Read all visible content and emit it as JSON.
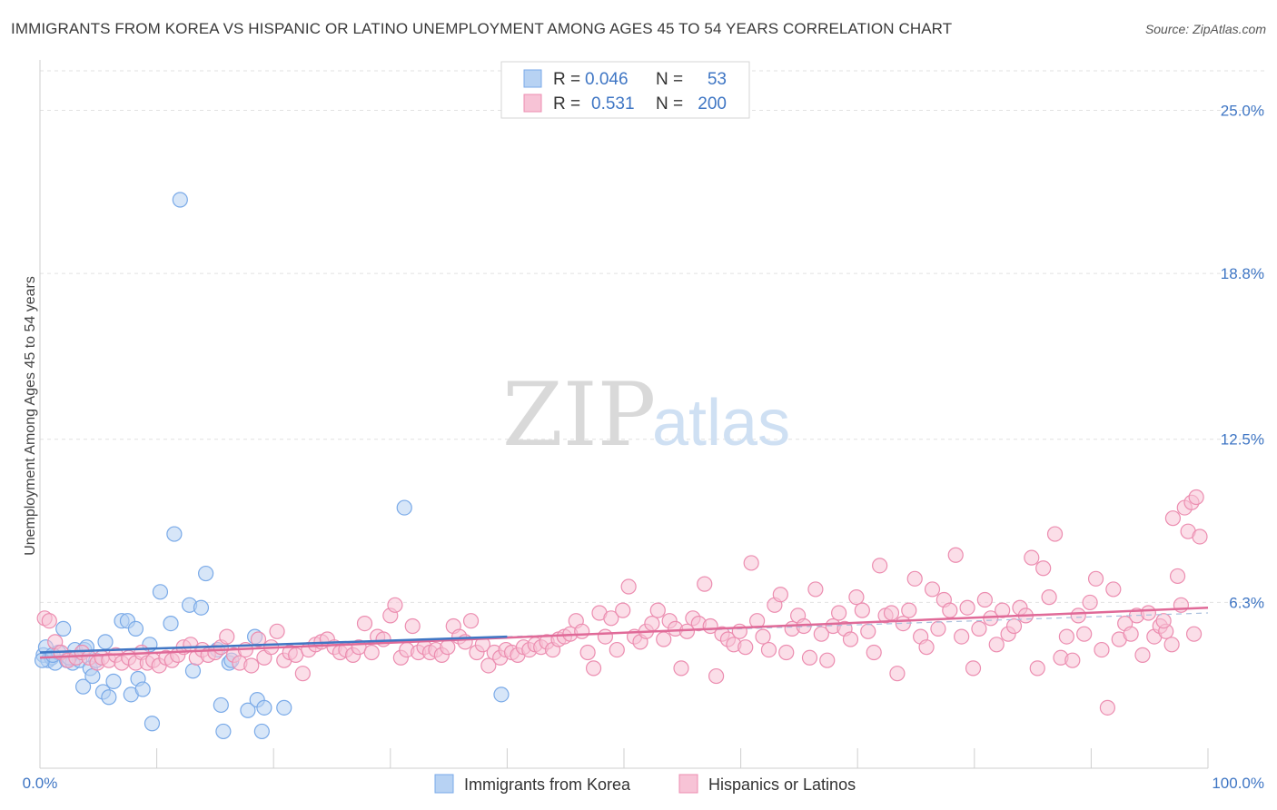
{
  "title": "IMMIGRANTS FROM KOREA VS HISPANIC OR LATINO UNEMPLOYMENT AMONG AGES 45 TO 54 YEARS CORRELATION CHART",
  "source": "Source: ZipAtlas.com",
  "watermark": {
    "zip": "ZIP",
    "atlas": "atlas"
  },
  "legend_box": {
    "rows": [
      {
        "r_label": "R =",
        "r_value": "0.046",
        "n_label": "N =",
        "n_value": "53"
      },
      {
        "r_label": "R =",
        "r_value": "0.531",
        "n_label": "N =",
        "n_value": "200"
      }
    ]
  },
  "chart_data": {
    "type": "scatter",
    "title": "IMMIGRANTS FROM KOREA VS HISPANIC OR LATINO UNEMPLOYMENT AMONG AGES 45 TO 54 YEARS CORRELATION CHART",
    "xlabel": "",
    "ylabel": "Unemployment Among Ages 45 to 54 years",
    "xlim": [
      0,
      100
    ],
    "ylim": [
      0,
      26.5
    ],
    "x_tick_labels": [
      "0.0%",
      "100.0%"
    ],
    "y_ticks": [
      6.3,
      12.5,
      18.8,
      25.0
    ],
    "y_tick_labels": [
      "6.3%",
      "12.5%",
      "18.8%",
      "25.0%"
    ],
    "grid": true,
    "legend_position": "bottom",
    "series": [
      {
        "name": "Immigrants from Korea",
        "color": "#7aaae8",
        "fill": "#b7d2f3",
        "R": 0.046,
        "N": 53,
        "trend": {
          "x": [
            0,
            40
          ],
          "y": [
            4.4,
            5.0
          ]
        },
        "points": [
          [
            0.3,
            4.3
          ],
          [
            0.5,
            4.6
          ],
          [
            0.7,
            4.1
          ],
          [
            1.0,
            4.2
          ],
          [
            1.3,
            4.0
          ],
          [
            1.6,
            4.4
          ],
          [
            2.0,
            5.3
          ],
          [
            2.3,
            4.1
          ],
          [
            2.8,
            4.0
          ],
          [
            3.0,
            4.5
          ],
          [
            3.4,
            4.1
          ],
          [
            3.7,
            3.1
          ],
          [
            3.8,
            4.5
          ],
          [
            4.0,
            4.6
          ],
          [
            4.3,
            3.8
          ],
          [
            4.5,
            3.5
          ],
          [
            4.8,
            4.1
          ],
          [
            5.4,
            2.9
          ],
          [
            5.6,
            4.8
          ],
          [
            5.9,
            2.7
          ],
          [
            6.3,
            3.3
          ],
          [
            7.0,
            5.6
          ],
          [
            7.5,
            5.6
          ],
          [
            7.8,
            2.8
          ],
          [
            8.2,
            5.3
          ],
          [
            8.4,
            3.4
          ],
          [
            8.8,
            3.0
          ],
          [
            9.6,
            1.7
          ],
          [
            9.4,
            4.7
          ],
          [
            10.3,
            6.7
          ],
          [
            11.2,
            5.5
          ],
          [
            12.0,
            21.6
          ],
          [
            11.5,
            8.9
          ],
          [
            12.8,
            6.2
          ],
          [
            13.1,
            3.7
          ],
          [
            13.8,
            6.1
          ],
          [
            14.2,
            7.4
          ],
          [
            15.2,
            4.5
          ],
          [
            16.2,
            4.0
          ],
          [
            16.4,
            4.1
          ],
          [
            15.5,
            2.4
          ],
          [
            15.7,
            1.4
          ],
          [
            17.8,
            2.2
          ],
          [
            18.4,
            5.0
          ],
          [
            18.6,
            2.6
          ],
          [
            19.0,
            1.4
          ],
          [
            19.2,
            2.3
          ],
          [
            20.9,
            2.3
          ],
          [
            31.2,
            9.9
          ],
          [
            39.5,
            2.8
          ],
          [
            0.2,
            4.1
          ],
          [
            1.1,
            4.3
          ],
          [
            2.5,
            4.2
          ]
        ]
      },
      {
        "name": "Hispanics or Latinos",
        "color": "#ec8db0",
        "fill": "#f7c3d6",
        "R": 0.531,
        "N": 200,
        "trend": {
          "x": [
            0,
            100
          ],
          "y": [
            4.2,
            6.1
          ]
        },
        "points": [
          [
            0.4,
            5.7
          ],
          [
            0.8,
            5.6
          ],
          [
            1.3,
            4.8
          ],
          [
            1.8,
            4.4
          ],
          [
            2.4,
            4.1
          ],
          [
            3.1,
            4.2
          ],
          [
            3.6,
            4.4
          ],
          [
            4.2,
            4.2
          ],
          [
            4.9,
            4.0
          ],
          [
            5.3,
            4.2
          ],
          [
            5.9,
            4.1
          ],
          [
            6.5,
            4.3
          ],
          [
            7.0,
            4.0
          ],
          [
            7.6,
            4.2
          ],
          [
            8.2,
            4.0
          ],
          [
            8.7,
            4.4
          ],
          [
            9.2,
            4.0
          ],
          [
            9.7,
            4.1
          ],
          [
            10.2,
            3.9
          ],
          [
            10.8,
            4.2
          ],
          [
            11.3,
            4.1
          ],
          [
            11.8,
            4.3
          ],
          [
            12.3,
            4.6
          ],
          [
            12.9,
            4.7
          ],
          [
            13.4,
            4.2
          ],
          [
            13.9,
            4.5
          ],
          [
            14.4,
            4.3
          ],
          [
            15.0,
            4.4
          ],
          [
            15.5,
            4.6
          ],
          [
            16.0,
            5.0
          ],
          [
            16.6,
            4.3
          ],
          [
            17.1,
            4.0
          ],
          [
            17.6,
            4.5
          ],
          [
            18.1,
            3.9
          ],
          [
            18.7,
            4.9
          ],
          [
            19.2,
            4.2
          ],
          [
            19.8,
            4.6
          ],
          [
            20.3,
            5.2
          ],
          [
            20.9,
            4.1
          ],
          [
            21.4,
            4.4
          ],
          [
            21.9,
            4.3
          ],
          [
            22.5,
            3.6
          ],
          [
            23.0,
            4.5
          ],
          [
            23.6,
            4.7
          ],
          [
            24.1,
            4.8
          ],
          [
            24.6,
            4.9
          ],
          [
            25.2,
            4.6
          ],
          [
            25.7,
            4.4
          ],
          [
            26.2,
            4.5
          ],
          [
            26.8,
            4.3
          ],
          [
            27.3,
            4.6
          ],
          [
            27.8,
            5.5
          ],
          [
            28.4,
            4.4
          ],
          [
            28.9,
            5.0
          ],
          [
            29.4,
            4.9
          ],
          [
            30.0,
            5.8
          ],
          [
            30.4,
            6.2
          ],
          [
            30.9,
            4.2
          ],
          [
            31.4,
            4.5
          ],
          [
            31.9,
            5.4
          ],
          [
            32.4,
            4.4
          ],
          [
            32.9,
            4.6
          ],
          [
            33.4,
            4.4
          ],
          [
            33.9,
            4.5
          ],
          [
            34.4,
            4.3
          ],
          [
            34.9,
            4.6
          ],
          [
            35.4,
            5.4
          ],
          [
            35.9,
            5.0
          ],
          [
            36.4,
            4.8
          ],
          [
            36.9,
            5.6
          ],
          [
            37.4,
            4.4
          ],
          [
            37.9,
            4.7
          ],
          [
            38.4,
            3.9
          ],
          [
            38.9,
            4.4
          ],
          [
            39.4,
            4.2
          ],
          [
            39.9,
            4.5
          ],
          [
            40.4,
            4.4
          ],
          [
            40.9,
            4.3
          ],
          [
            41.4,
            4.6
          ],
          [
            41.9,
            4.5
          ],
          [
            42.4,
            4.7
          ],
          [
            42.9,
            4.6
          ],
          [
            43.4,
            4.8
          ],
          [
            43.9,
            4.5
          ],
          [
            44.4,
            4.9
          ],
          [
            44.9,
            5.0
          ],
          [
            45.4,
            5.1
          ],
          [
            45.9,
            5.6
          ],
          [
            46.4,
            5.2
          ],
          [
            46.9,
            4.4
          ],
          [
            47.4,
            3.8
          ],
          [
            47.9,
            5.9
          ],
          [
            48.4,
            5.0
          ],
          [
            48.9,
            5.7
          ],
          [
            49.4,
            4.5
          ],
          [
            49.9,
            6.0
          ],
          [
            50.4,
            6.9
          ],
          [
            50.9,
            5.0
          ],
          [
            51.4,
            4.8
          ],
          [
            51.9,
            5.2
          ],
          [
            52.4,
            5.5
          ],
          [
            52.9,
            6.0
          ],
          [
            53.4,
            4.9
          ],
          [
            53.9,
            5.6
          ],
          [
            54.4,
            5.3
          ],
          [
            54.9,
            3.8
          ],
          [
            55.4,
            5.2
          ],
          [
            55.9,
            5.7
          ],
          [
            56.4,
            5.5
          ],
          [
            56.9,
            7.0
          ],
          [
            57.4,
            5.4
          ],
          [
            57.9,
            3.5
          ],
          [
            58.4,
            5.1
          ],
          [
            58.9,
            4.9
          ],
          [
            59.4,
            4.7
          ],
          [
            59.9,
            5.2
          ],
          [
            60.4,
            4.6
          ],
          [
            60.9,
            7.8
          ],
          [
            61.4,
            5.6
          ],
          [
            61.9,
            5.0
          ],
          [
            62.4,
            4.5
          ],
          [
            62.9,
            6.2
          ],
          [
            63.4,
            6.6
          ],
          [
            63.9,
            4.4
          ],
          [
            64.4,
            5.3
          ],
          [
            64.9,
            5.8
          ],
          [
            65.4,
            5.4
          ],
          [
            65.9,
            4.2
          ],
          [
            66.4,
            6.8
          ],
          [
            66.9,
            5.1
          ],
          [
            67.4,
            4.1
          ],
          [
            67.9,
            5.4
          ],
          [
            68.4,
            5.9
          ],
          [
            68.9,
            5.3
          ],
          [
            69.4,
            4.9
          ],
          [
            69.9,
            6.5
          ],
          [
            70.4,
            6.0
          ],
          [
            70.9,
            5.2
          ],
          [
            71.4,
            4.4
          ],
          [
            71.9,
            7.7
          ],
          [
            72.4,
            5.8
          ],
          [
            72.9,
            5.9
          ],
          [
            73.4,
            3.6
          ],
          [
            73.9,
            5.5
          ],
          [
            74.4,
            6.0
          ],
          [
            74.9,
            7.2
          ],
          [
            75.4,
            5.0
          ],
          [
            75.9,
            4.6
          ],
          [
            76.4,
            6.8
          ],
          [
            76.9,
            5.3
          ],
          [
            77.4,
            6.4
          ],
          [
            77.9,
            6.0
          ],
          [
            78.4,
            8.1
          ],
          [
            78.9,
            5.0
          ],
          [
            79.4,
            6.1
          ],
          [
            79.9,
            3.8
          ],
          [
            80.4,
            5.3
          ],
          [
            80.9,
            6.4
          ],
          [
            81.4,
            5.7
          ],
          [
            81.9,
            4.7
          ],
          [
            82.4,
            6.0
          ],
          [
            82.9,
            5.1
          ],
          [
            83.4,
            5.4
          ],
          [
            83.9,
            6.1
          ],
          [
            84.4,
            5.8
          ],
          [
            84.9,
            8.0
          ],
          [
            85.4,
            3.8
          ],
          [
            85.9,
            7.6
          ],
          [
            86.4,
            6.5
          ],
          [
            86.9,
            8.9
          ],
          [
            87.4,
            4.2
          ],
          [
            87.9,
            5.0
          ],
          [
            88.4,
            4.1
          ],
          [
            88.9,
            5.8
          ],
          [
            89.4,
            5.1
          ],
          [
            89.9,
            6.3
          ],
          [
            90.4,
            7.2
          ],
          [
            90.9,
            4.5
          ],
          [
            91.4,
            2.3
          ],
          [
            91.9,
            6.8
          ],
          [
            92.4,
            4.9
          ],
          [
            92.9,
            5.5
          ],
          [
            93.4,
            5.1
          ],
          [
            93.9,
            5.8
          ],
          [
            94.4,
            4.3
          ],
          [
            94.9,
            5.9
          ],
          [
            95.4,
            5.0
          ],
          [
            95.9,
            5.4
          ],
          [
            96.4,
            5.2
          ],
          [
            96.9,
            4.7
          ],
          [
            97.4,
            7.3
          ],
          [
            97.7,
            6.2
          ],
          [
            98.0,
            9.9
          ],
          [
            98.3,
            9.0
          ],
          [
            98.6,
            10.1
          ],
          [
            99.0,
            10.3
          ],
          [
            99.3,
            8.8
          ],
          [
            96.2,
            5.6
          ],
          [
            97.0,
            9.5
          ],
          [
            98.8,
            5.1
          ]
        ]
      }
    ]
  },
  "bottom_legend": {
    "items": [
      {
        "label": "Immigrants from Korea"
      },
      {
        "label": "Hispanics or Latinos"
      }
    ]
  }
}
